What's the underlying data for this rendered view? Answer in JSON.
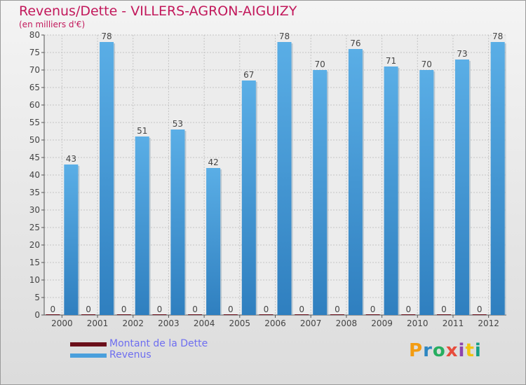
{
  "title": "Revenus/Dette - VILLERS-AGRON-AIGUIZY",
  "subtitle": "(en milliers d'€)",
  "logo": "Proxiti",
  "colors": {
    "title": "#c2185b",
    "debt": "#6b0f1a",
    "revenue": "#4a9fdc",
    "legend_text": "#6e6ef0"
  },
  "chart_data": {
    "type": "bar",
    "categories": [
      "2000",
      "2001",
      "2002",
      "2003",
      "2004",
      "2005",
      "2006",
      "2007",
      "2008",
      "2009",
      "2010",
      "2011",
      "2012"
    ],
    "series": [
      {
        "name": "Montant de la Dette",
        "values": [
          0,
          0,
          0,
          0,
          0,
          0,
          0,
          0,
          0,
          0,
          0,
          0,
          0
        ]
      },
      {
        "name": "Revenus",
        "values": [
          43,
          78,
          51,
          53,
          42,
          67,
          78,
          70,
          76,
          71,
          70,
          73,
          78
        ]
      }
    ],
    "ylim": [
      0,
      80
    ],
    "yticks": [
      0,
      5,
      10,
      15,
      20,
      25,
      30,
      35,
      40,
      45,
      50,
      55,
      60,
      65,
      70,
      75,
      80
    ],
    "grid": true,
    "legend": "bottom-left"
  }
}
